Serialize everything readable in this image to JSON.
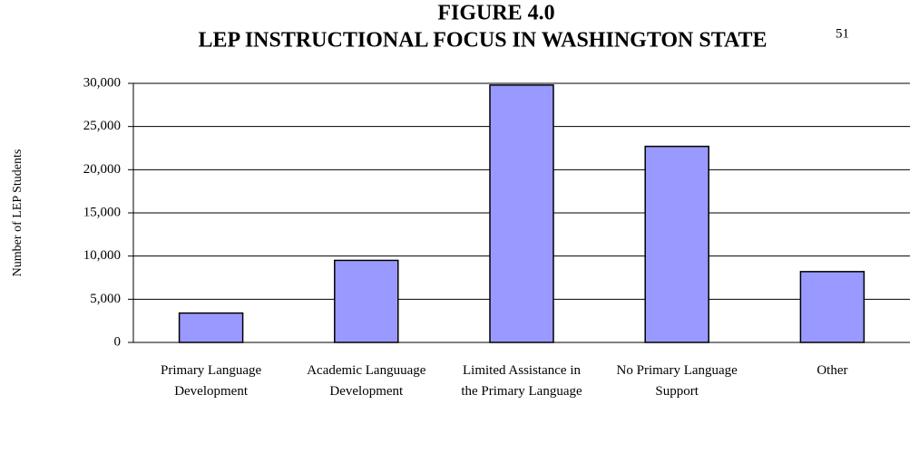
{
  "chart_data": {
    "type": "bar",
    "title": "FIGURE 4.0",
    "subtitle": "LEP INSTRUCTIONAL FOCUS IN WASHINGTON STATE",
    "footnote": "51",
    "y_label": "Number of LEP Students",
    "categories": [
      "Primary Language Development",
      "Academic Languuage Development",
      "Limited Assistance in the Primary Language",
      "No Primary Language Support",
      "Other"
    ],
    "values": [
      3400,
      9500,
      29800,
      22700,
      8200
    ],
    "color": "#9999ff",
    "ylim": [
      0,
      30000
    ],
    "yticks": [
      0,
      {
        "value": 5000,
        "label": "5,000"
      },
      {
        "value": 10000,
        "label": "10,000"
      },
      {
        "value": 15000,
        "label": "15,000"
      },
      {
        "value": 20000,
        "label": "20,000"
      },
      {
        "value": 25000,
        "label": "25,000"
      },
      {
        "value": 30000,
        "label": "30,000"
      }
    ],
    "grid": true
  }
}
